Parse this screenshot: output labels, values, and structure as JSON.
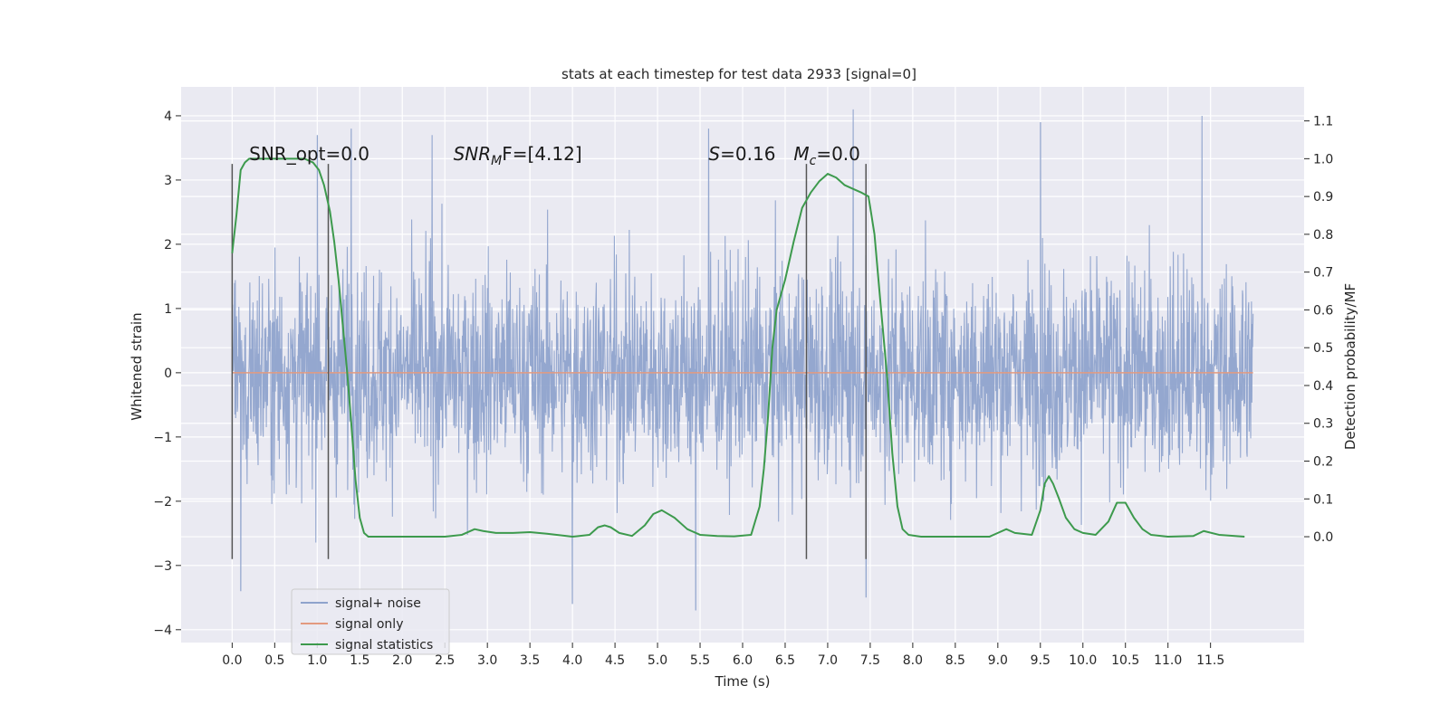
{
  "chart_data": {
    "type": "line",
    "title": "stats at each timestep for test data 2933 [signal=0]",
    "xlabel": "Time (s)",
    "ylabel_left": "Whitened strain",
    "ylabel_right": "Detection probability/MF",
    "xlim": [
      -0.6,
      12.6
    ],
    "ylim_left": [
      -4.2,
      4.45
    ],
    "ylim_right": [
      -0.28,
      1.19
    ],
    "x_ticks": [
      "0.0",
      "0.5",
      "1.0",
      "1.5",
      "2.0",
      "2.5",
      "3.0",
      "3.5",
      "4.0",
      "4.5",
      "5.0",
      "5.5",
      "6.0",
      "6.5",
      "7.0",
      "7.5",
      "8.0",
      "8.5",
      "9.0",
      "9.5",
      "10.0",
      "10.5",
      "11.0",
      "11.5"
    ],
    "y_left_ticks": [
      "4",
      "3",
      "2",
      "1",
      "0",
      "−1",
      "−2",
      "−3",
      "−4"
    ],
    "y_right_ticks": [
      "1.1",
      "1.0",
      "0.9",
      "0.8",
      "0.7",
      "0.6",
      "0.5",
      "0.4",
      "0.3",
      "0.2",
      "0.1",
      "0.0"
    ],
    "grid": true,
    "legend_placement": "lower-left",
    "series": [
      {
        "name": "signal+ noise",
        "color": "#8fa3cc",
        "axis": "left",
        "kind": "noise",
        "x_range": [
          0.0,
          12.0
        ],
        "envelope_approx": [
          -2.9,
          3.3
        ],
        "notable_peaks": [
          [
            1.0,
            3.7
          ],
          [
            1.4,
            3.8
          ],
          [
            2.35,
            3.7
          ],
          [
            5.6,
            3.8
          ],
          [
            7.3,
            4.1
          ],
          [
            11.4,
            4.0
          ],
          [
            9.5,
            3.9
          ],
          [
            0.1,
            -3.4
          ],
          [
            5.45,
            -3.7
          ],
          [
            4.0,
            -3.6
          ],
          [
            7.45,
            -3.5
          ]
        ]
      },
      {
        "name": "signal only",
        "color": "#e39a7f",
        "axis": "left",
        "x": [
          0.0,
          12.0
        ],
        "y": [
          0.0,
          0.0
        ]
      },
      {
        "name": "signal statistics",
        "color": "#3d9a4d",
        "axis": "right",
        "x": [
          0.0,
          0.05,
          0.1,
          0.15,
          0.2,
          0.3,
          0.5,
          0.7,
          0.85,
          0.95,
          1.02,
          1.08,
          1.15,
          1.2,
          1.25,
          1.3,
          1.35,
          1.4,
          1.45,
          1.5,
          1.55,
          1.6,
          1.7,
          2.0,
          2.5,
          2.7,
          2.85,
          2.95,
          3.1,
          3.3,
          3.5,
          3.7,
          4.0,
          4.2,
          4.3,
          4.38,
          4.45,
          4.55,
          4.7,
          4.85,
          4.95,
          5.05,
          5.2,
          5.35,
          5.5,
          5.7,
          5.9,
          6.1,
          6.2,
          6.25,
          6.3,
          6.35,
          6.4,
          6.5,
          6.6,
          6.7,
          6.8,
          6.9,
          7.0,
          7.1,
          7.2,
          7.3,
          7.4,
          7.48,
          7.55,
          7.62,
          7.7,
          7.76,
          7.82,
          7.88,
          7.95,
          8.1,
          8.5,
          8.9,
          9.0,
          9.1,
          9.2,
          9.4,
          9.5,
          9.55,
          9.6,
          9.65,
          9.72,
          9.8,
          9.9,
          10.0,
          10.15,
          10.3,
          10.4,
          10.5,
          10.6,
          10.7,
          10.8,
          11.0,
          11.3,
          11.42,
          11.6,
          11.9
        ],
        "y": [
          0.75,
          0.85,
          0.97,
          0.99,
          1.0,
          1.0,
          1.0,
          1.0,
          1.0,
          0.99,
          0.97,
          0.93,
          0.86,
          0.78,
          0.68,
          0.56,
          0.44,
          0.3,
          0.15,
          0.05,
          0.01,
          0.0,
          0.0,
          0.0,
          0.0,
          0.005,
          0.02,
          0.015,
          0.01,
          0.01,
          0.012,
          0.008,
          0.0,
          0.005,
          0.025,
          0.03,
          0.025,
          0.01,
          0.002,
          0.03,
          0.06,
          0.07,
          0.05,
          0.02,
          0.005,
          0.002,
          0.001,
          0.005,
          0.08,
          0.18,
          0.32,
          0.5,
          0.6,
          0.68,
          0.78,
          0.87,
          0.91,
          0.94,
          0.96,
          0.95,
          0.93,
          0.92,
          0.91,
          0.9,
          0.8,
          0.62,
          0.42,
          0.22,
          0.08,
          0.02,
          0.005,
          0.0,
          0.0,
          0.0,
          0.01,
          0.02,
          0.01,
          0.005,
          0.07,
          0.14,
          0.16,
          0.14,
          0.1,
          0.05,
          0.02,
          0.01,
          0.005,
          0.04,
          0.09,
          0.09,
          0.05,
          0.02,
          0.005,
          0.0,
          0.002,
          0.015,
          0.005,
          0.0
        ]
      }
    ],
    "vertical_lines": [
      {
        "x": 0.0,
        "y_from": -2.9,
        "y_to": 3.25,
        "axis": "left"
      },
      {
        "x": 1.13,
        "y_from": -2.9,
        "y_to": 3.25,
        "axis": "left"
      },
      {
        "x": 6.75,
        "y_from": -2.9,
        "y_to": 3.25,
        "axis": "left"
      },
      {
        "x": 7.45,
        "y_from": -2.9,
        "y_to": 3.25,
        "axis": "left"
      }
    ],
    "annotations": [
      {
        "kind": "plain",
        "text": "SNR_opt=0.0",
        "x": 0.2,
        "y": 3.25
      },
      {
        "kind": "math",
        "base": "SNR",
        "sub": "M",
        "rest": "F=[4.12]",
        "x": 2.6,
        "y": 3.25
      },
      {
        "kind": "math",
        "base": "S",
        "sub": "",
        "rest": "=0.16",
        "x": 5.6,
        "y": 3.25
      },
      {
        "kind": "math",
        "base": "M",
        "sub": "c",
        "rest": "=0.0",
        "x": 6.6,
        "y": 3.25
      }
    ]
  }
}
